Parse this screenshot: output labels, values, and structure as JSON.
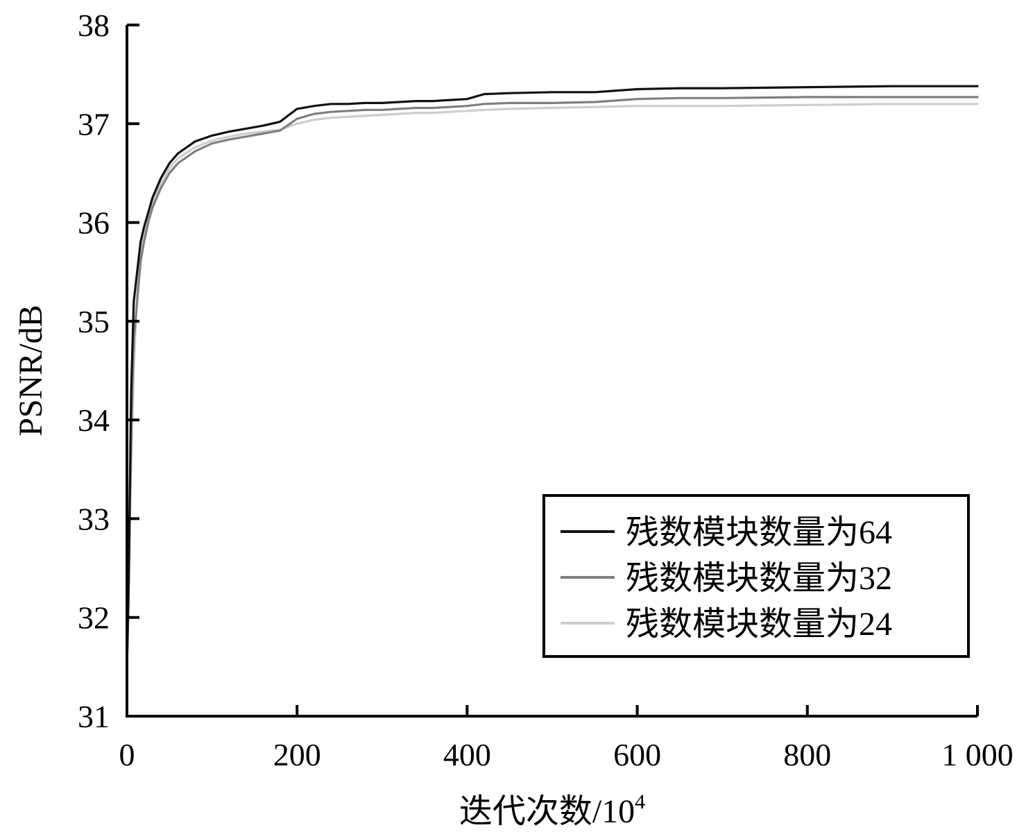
{
  "chart_data": {
    "type": "line",
    "title": "",
    "xlabel": "迭代次数/10",
    "xlabel_superscript": "4",
    "ylabel": "PSNR/dB",
    "xlim": [
      0,
      1000
    ],
    "ylim": [
      31,
      38
    ],
    "xticks": [
      0,
      200,
      400,
      600,
      800,
      1000
    ],
    "xtick_labels": [
      "0",
      "200",
      "400",
      "600",
      "800",
      "1 000"
    ],
    "yticks": [
      31,
      32,
      33,
      34,
      35,
      36,
      37,
      38
    ],
    "ytick_labels": [
      "31",
      "32",
      "33",
      "34",
      "35",
      "36",
      "37",
      "38"
    ],
    "grid": false,
    "legend_position": "bottom-right",
    "series": [
      {
        "name": "残数模块数量为64",
        "color": "#111111",
        "x": [
          0,
          2,
          5,
          8,
          12,
          16,
          20,
          25,
          30,
          40,
          50,
          60,
          80,
          100,
          120,
          140,
          160,
          180,
          200,
          220,
          240,
          260,
          280,
          300,
          320,
          340,
          360,
          380,
          400,
          420,
          450,
          500,
          550,
          600,
          650,
          700,
          800,
          900,
          1000
        ],
        "y": [
          31.5,
          32.4,
          34.3,
          35.2,
          35.5,
          35.8,
          35.95,
          36.1,
          36.25,
          36.45,
          36.6,
          36.7,
          36.82,
          36.88,
          36.92,
          36.95,
          36.98,
          37.02,
          37.15,
          37.18,
          37.2,
          37.2,
          37.21,
          37.21,
          37.22,
          37.23,
          37.23,
          37.24,
          37.25,
          37.3,
          37.31,
          37.32,
          37.32,
          37.35,
          37.36,
          37.36,
          37.37,
          37.38,
          37.38
        ]
      },
      {
        "name": "残数模块数量为32",
        "color": "#7f7f7f",
        "x": [
          0,
          2,
          5,
          8,
          12,
          16,
          20,
          25,
          30,
          40,
          50,
          60,
          80,
          100,
          120,
          140,
          160,
          180,
          200,
          220,
          240,
          260,
          280,
          300,
          320,
          340,
          360,
          380,
          400,
          420,
          450,
          500,
          550,
          600,
          650,
          700,
          800,
          900,
          1000
        ],
        "y": [
          31.5,
          32.2,
          33.9,
          34.8,
          35.2,
          35.6,
          35.8,
          36.0,
          36.15,
          36.35,
          36.5,
          36.6,
          36.72,
          36.8,
          36.84,
          36.87,
          36.9,
          36.93,
          37.05,
          37.1,
          37.12,
          37.13,
          37.14,
          37.14,
          37.15,
          37.16,
          37.16,
          37.17,
          37.18,
          37.2,
          37.21,
          37.21,
          37.22,
          37.25,
          37.26,
          37.26,
          37.27,
          37.27,
          37.27
        ]
      },
      {
        "name": "残数模块数量为24",
        "color": "#cdcdcd",
        "x": [
          0,
          2,
          5,
          8,
          12,
          16,
          20,
          25,
          30,
          40,
          50,
          60,
          80,
          100,
          120,
          140,
          160,
          180,
          200,
          220,
          240,
          260,
          280,
          300,
          320,
          340,
          360,
          380,
          400,
          420,
          450,
          500,
          550,
          600,
          650,
          700,
          800,
          900,
          1000
        ],
        "y": [
          31.6,
          32.8,
          33.5,
          34.5,
          35.3,
          35.7,
          35.9,
          36.05,
          36.2,
          36.4,
          36.55,
          36.65,
          36.76,
          36.83,
          36.87,
          36.9,
          36.92,
          36.94,
          37.0,
          37.04,
          37.06,
          37.07,
          37.08,
          37.09,
          37.1,
          37.11,
          37.11,
          37.12,
          37.13,
          37.14,
          37.15,
          37.16,
          37.17,
          37.18,
          37.18,
          37.18,
          37.19,
          37.2,
          37.2
        ]
      }
    ]
  }
}
